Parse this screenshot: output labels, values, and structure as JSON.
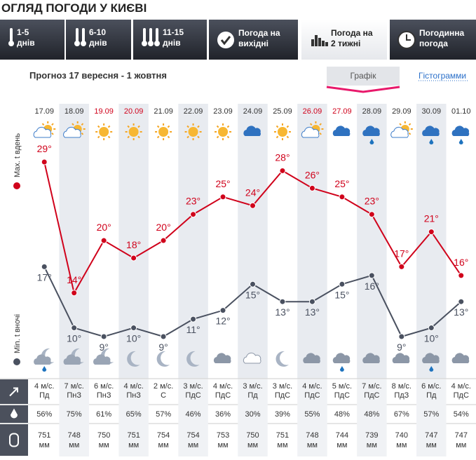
{
  "header": {
    "title": "ОГЛЯД ПОГОДИ У КИЄВІ"
  },
  "tabs": [
    {
      "label": "1-5",
      "sub": "днів"
    },
    {
      "label": "6-10",
      "sub": "днів"
    },
    {
      "label": "11-15",
      "sub": "днів"
    },
    {
      "label": "Погода на",
      "sub": "вихідні"
    },
    {
      "label": "Погода на",
      "sub": "2 тижні"
    },
    {
      "label": "Погодинна",
      "sub": "погода"
    }
  ],
  "forecast_title": "Прогноз 17 вересня - 1 жовтня",
  "view_buttons": [
    "Графік",
    "Гістограмми"
  ],
  "chart_data": {
    "type": "line",
    "categories": [
      "17.09",
      "18.09",
      "19.09",
      "20.09",
      "21.09",
      "22.09",
      "23.09",
      "24.09",
      "25.09",
      "26.09",
      "27.09",
      "28.09",
      "29.09",
      "30.09",
      "01.10"
    ],
    "category_colors": [
      "#333333",
      "#333333",
      "#d0021b",
      "#d0021b",
      "#333333",
      "#333333",
      "#333333",
      "#333333",
      "#333333",
      "#d0021b",
      "#d0021b",
      "#333333",
      "#333333",
      "#333333",
      "#333333"
    ],
    "series": [
      {
        "name": "Max. t вдень",
        "color": "#d0021b",
        "values": [
          29,
          14,
          20,
          18,
          20,
          23,
          25,
          24,
          28,
          26,
          25,
          23,
          17,
          21,
          16
        ],
        "value_labels": [
          "29°",
          "14°",
          "20°",
          "18°",
          "20°",
          "23°",
          "25°",
          "24°",
          "28°",
          "26°",
          "25°",
          "23°",
          "17°",
          "21°",
          "16°"
        ]
      },
      {
        "name": "Min. t вночі",
        "color": "#4a5160",
        "values": [
          17,
          10,
          9,
          10,
          9,
          11,
          12,
          15,
          13,
          13,
          15,
          16,
          9,
          10,
          13
        ],
        "value_labels": [
          "17°",
          "10°",
          "9°",
          "10°",
          "9°",
          "11°",
          "12°",
          "15°",
          "13°",
          "13°",
          "15°",
          "16°",
          "9°",
          "10°",
          "13°"
        ]
      }
    ]
  },
  "table": {
    "wind_speed": [
      "4 м/с.",
      "7 м/с.",
      "6 м/с.",
      "4 м/с.",
      "2 м/с.",
      "3 м/с.",
      "4 м/с.",
      "3 м/с.",
      "3 м/с.",
      "4 м/с.",
      "5 м/с.",
      "7 м/с.",
      "8 м/с.",
      "6 м/с.",
      "4 м/с."
    ],
    "wind_direction": [
      "Пд",
      "ПнЗ",
      "ПнЗ",
      "ПнЗ",
      "С",
      "ПдС",
      "ПдС",
      "Пд",
      "ПдС",
      "ПдС",
      "ПдС",
      "ПдС",
      "ПдЗ",
      "Пд",
      "ПдС"
    ],
    "humidity": [
      "56%",
      "75%",
      "61%",
      "65%",
      "57%",
      "46%",
      "36%",
      "30%",
      "39%",
      "55%",
      "48%",
      "48%",
      "67%",
      "57%",
      "54%"
    ],
    "pressure": [
      "751",
      "748",
      "750",
      "751",
      "754",
      "754",
      "753",
      "750",
      "751",
      "748",
      "744",
      "739",
      "740",
      "747",
      "747"
    ],
    "pressure_unit": "мм"
  }
}
